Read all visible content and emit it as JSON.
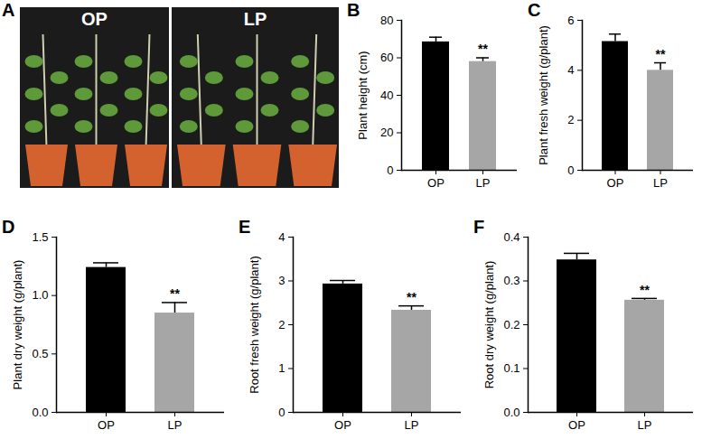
{
  "panel_a": {
    "panel": "A",
    "captions": [
      "OP",
      "LP"
    ]
  },
  "chart_data": [
    {
      "type": "bar",
      "panel": "B",
      "ylabel": "Plant height (cm)",
      "categories": [
        "OP",
        "LP"
      ],
      "values": [
        68.5,
        58
      ],
      "errors": [
        2.5,
        2
      ],
      "colors": [
        "#000000",
        "#a6a6a6"
      ],
      "ylim": [
        0,
        80
      ],
      "yticks": [
        0,
        20,
        40,
        60,
        80
      ],
      "annotations": [
        {
          "category": "LP",
          "text": "**"
        }
      ]
    },
    {
      "type": "bar",
      "panel": "C",
      "ylabel": "Plant fresh weight (g/plant)",
      "categories": [
        "OP",
        "LP"
      ],
      "values": [
        5.15,
        4.0
      ],
      "errors": [
        0.3,
        0.3
      ],
      "colors": [
        "#000000",
        "#a6a6a6"
      ],
      "ylim": [
        0,
        6
      ],
      "yticks": [
        0,
        2,
        4,
        6
      ],
      "annotations": [
        {
          "category": "LP",
          "text": "**"
        }
      ]
    },
    {
      "type": "bar",
      "panel": "D",
      "ylabel": "Plant dry weight (g/plant)",
      "categories": [
        "OP",
        "LP"
      ],
      "values": [
        1.24,
        0.85
      ],
      "errors": [
        0.04,
        0.09
      ],
      "colors": [
        "#000000",
        "#a6a6a6"
      ],
      "ylim": [
        0,
        1.5
      ],
      "yticks": [
        {
          "value": 0,
          "label": "0.0"
        },
        0.5,
        {
          "value": 1,
          "label": "1.0"
        },
        1.5
      ],
      "annotations": [
        {
          "category": "LP",
          "text": "**"
        }
      ]
    },
    {
      "type": "bar",
      "panel": "E",
      "ylabel": "Root fresh weight (g/plant)",
      "categories": [
        "OP",
        "LP"
      ],
      "values": [
        2.93,
        2.33
      ],
      "errors": [
        0.08,
        0.1
      ],
      "colors": [
        "#000000",
        "#a6a6a6"
      ],
      "ylim": [
        0,
        4
      ],
      "yticks": [
        0,
        1,
        2,
        3,
        4
      ],
      "annotations": [
        {
          "category": "LP",
          "text": "**"
        }
      ]
    },
    {
      "type": "bar",
      "panel": "F",
      "ylabel": "Root dry weight (g/plant)",
      "categories": [
        "OP",
        "LP"
      ],
      "values": [
        0.348,
        0.256
      ],
      "errors": [
        0.015,
        0.004
      ],
      "colors": [
        "#000000",
        "#a6a6a6"
      ],
      "ylim": [
        0,
        0.4
      ],
      "yticks": [
        {
          "value": 0,
          "label": "0.0"
        },
        0.1,
        0.2,
        0.3,
        0.4
      ],
      "annotations": [
        {
          "category": "LP",
          "text": "**"
        }
      ]
    }
  ]
}
